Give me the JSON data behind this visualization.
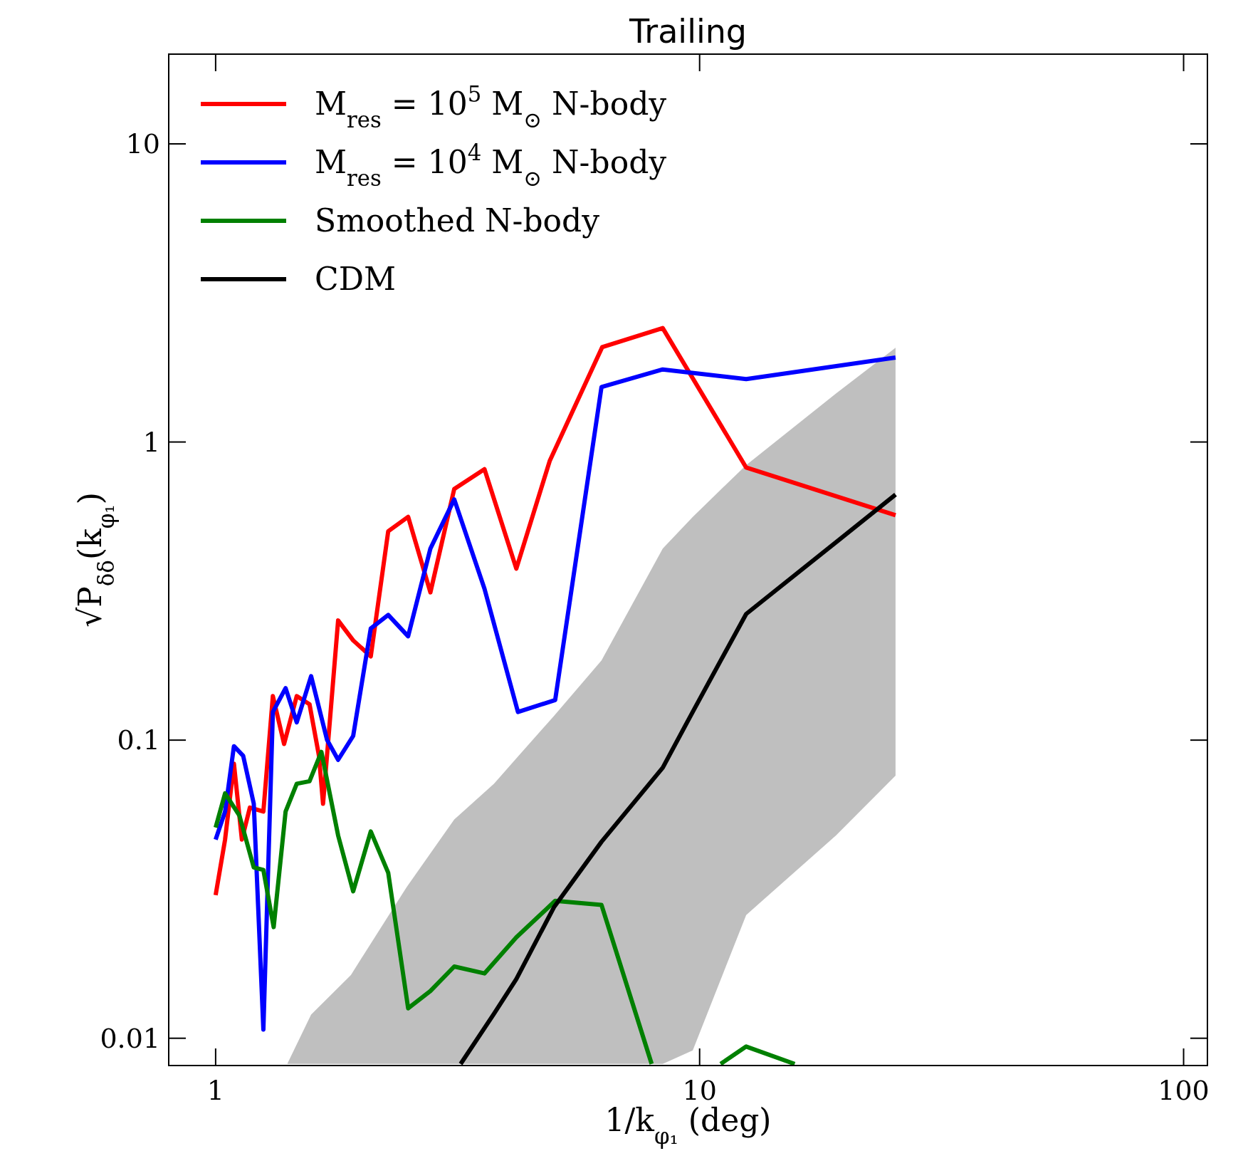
{
  "chart_data": {
    "type": "line",
    "title": "Trailing",
    "xlabel": "1/k$_{φ₁}$ (deg)",
    "ylabel": "√P$_{δδ}$(k$_{φ₁}$)",
    "log": "xy",
    "grid": false,
    "legend": "top left",
    "xlim": [
      0.8,
      112
    ],
    "ylim": [
      0.0081,
      20
    ],
    "xticks": [
      1,
      10,
      100
    ],
    "yticks": [
      0.01,
      0.1,
      1,
      10
    ],
    "series": [
      {
        "name": "M$_{res}$ = 10$^{5}$ M$_{⊙}$ N-body",
        "color": "#ff0000",
        "x": [
          1,
          1.046,
          1.091,
          1.133,
          1.177,
          1.255,
          1.313,
          1.385,
          1.471,
          1.563,
          1.635,
          1.667,
          1.791,
          1.924,
          2.092,
          2.273,
          2.499,
          2.778,
          3.112,
          3.593,
          4.181,
          4.9,
          6.29,
          8.39,
          12.48,
          25.4
        ],
        "values": [
          0.0302,
          0.0464,
          0.0833,
          0.0464,
          0.0594,
          0.0576,
          0.1405,
          0.0971,
          0.1405,
          0.132,
          0.0886,
          0.0612,
          0.252,
          0.216,
          0.191,
          0.502,
          0.561,
          0.313,
          0.696,
          0.811,
          0.376,
          0.863,
          2.08,
          2.41,
          0.821,
          0.568
        ]
      },
      {
        "name": "M$_{res}$ = 10$^{4}$ M$_{⊙}$ N-body",
        "color": "#0000ff",
        "x": [
          1,
          1.046,
          1.091,
          1.14,
          1.199,
          1.255,
          1.313,
          1.395,
          1.471,
          1.575,
          1.699,
          1.791,
          1.924,
          2.092,
          2.273,
          2.499,
          2.778,
          3.112,
          3.593,
          4.213,
          5.03,
          6.27,
          8.39,
          12.48,
          25.4
        ],
        "values": [
          0.0464,
          0.0576,
          0.0954,
          0.0886,
          0.0612,
          0.0107,
          0.1243,
          0.1494,
          0.1147,
          0.1639,
          0.1002,
          0.0859,
          0.1033,
          0.237,
          0.263,
          0.223,
          0.439,
          0.642,
          0.322,
          0.1243,
          0.1363,
          1.529,
          1.751,
          1.626,
          1.92
        ]
      },
      {
        "name": "Smoothed N-body",
        "color": "#008000",
        "x": [
          1,
          1.046,
          1.12,
          1.199,
          1.255,
          1.318,
          1.395,
          1.471,
          1.563,
          1.654,
          1.791,
          1.924,
          2.092,
          2.273,
          2.499,
          2.778,
          3.112,
          3.593,
          4.181,
          5.03,
          6.27,
          7.96,
          9.68,
          11.05,
          12.48,
          15.72
        ],
        "values": [
          0.0509,
          0.0663,
          0.0558,
          0.0374,
          0.0367,
          0.0236,
          0.0576,
          0.0714,
          0.0728,
          0.0913,
          0.0479,
          0.0311,
          0.0494,
          0.0359,
          0.0126,
          0.0144,
          0.0174,
          0.0165,
          0.0218,
          0.0289,
          0.028,
          0.0082,
          null,
          0.0082,
          0.00938,
          0.0082
        ]
      },
      {
        "name": "CDM",
        "color": "#000000",
        "x": [
          1.406,
          1.575,
          1.903,
          2.48,
          3.112,
          3.208,
          3.761,
          4.181,
          5.0,
          6.27,
          8.39,
          9.68,
          12.48,
          19.13,
          25.4
        ],
        "values": [
          null,
          null,
          null,
          null,
          null,
          0.0082,
          0.0121,
          0.0158,
          0.0275,
          0.0456,
          0.0808,
          0.1245,
          0.265,
          0.461,
          0.666
        ],
        "lower": [
          0.0082,
          0.0082,
          0.0082,
          0.0082,
          0.0082,
          0.0082,
          0.0082,
          0.0082,
          0.0082,
          0.0082,
          0.0082,
          0.0091,
          0.0259,
          0.0479,
          0.076
        ],
        "upper": [
          0.0082,
          0.012,
          0.0163,
          0.0321,
          0.0542,
          0.0566,
          0.0714,
          0.0868,
          0.1205,
          0.185,
          0.439,
          0.561,
          0.837,
          1.455,
          2.07
        ]
      }
    ]
  }
}
